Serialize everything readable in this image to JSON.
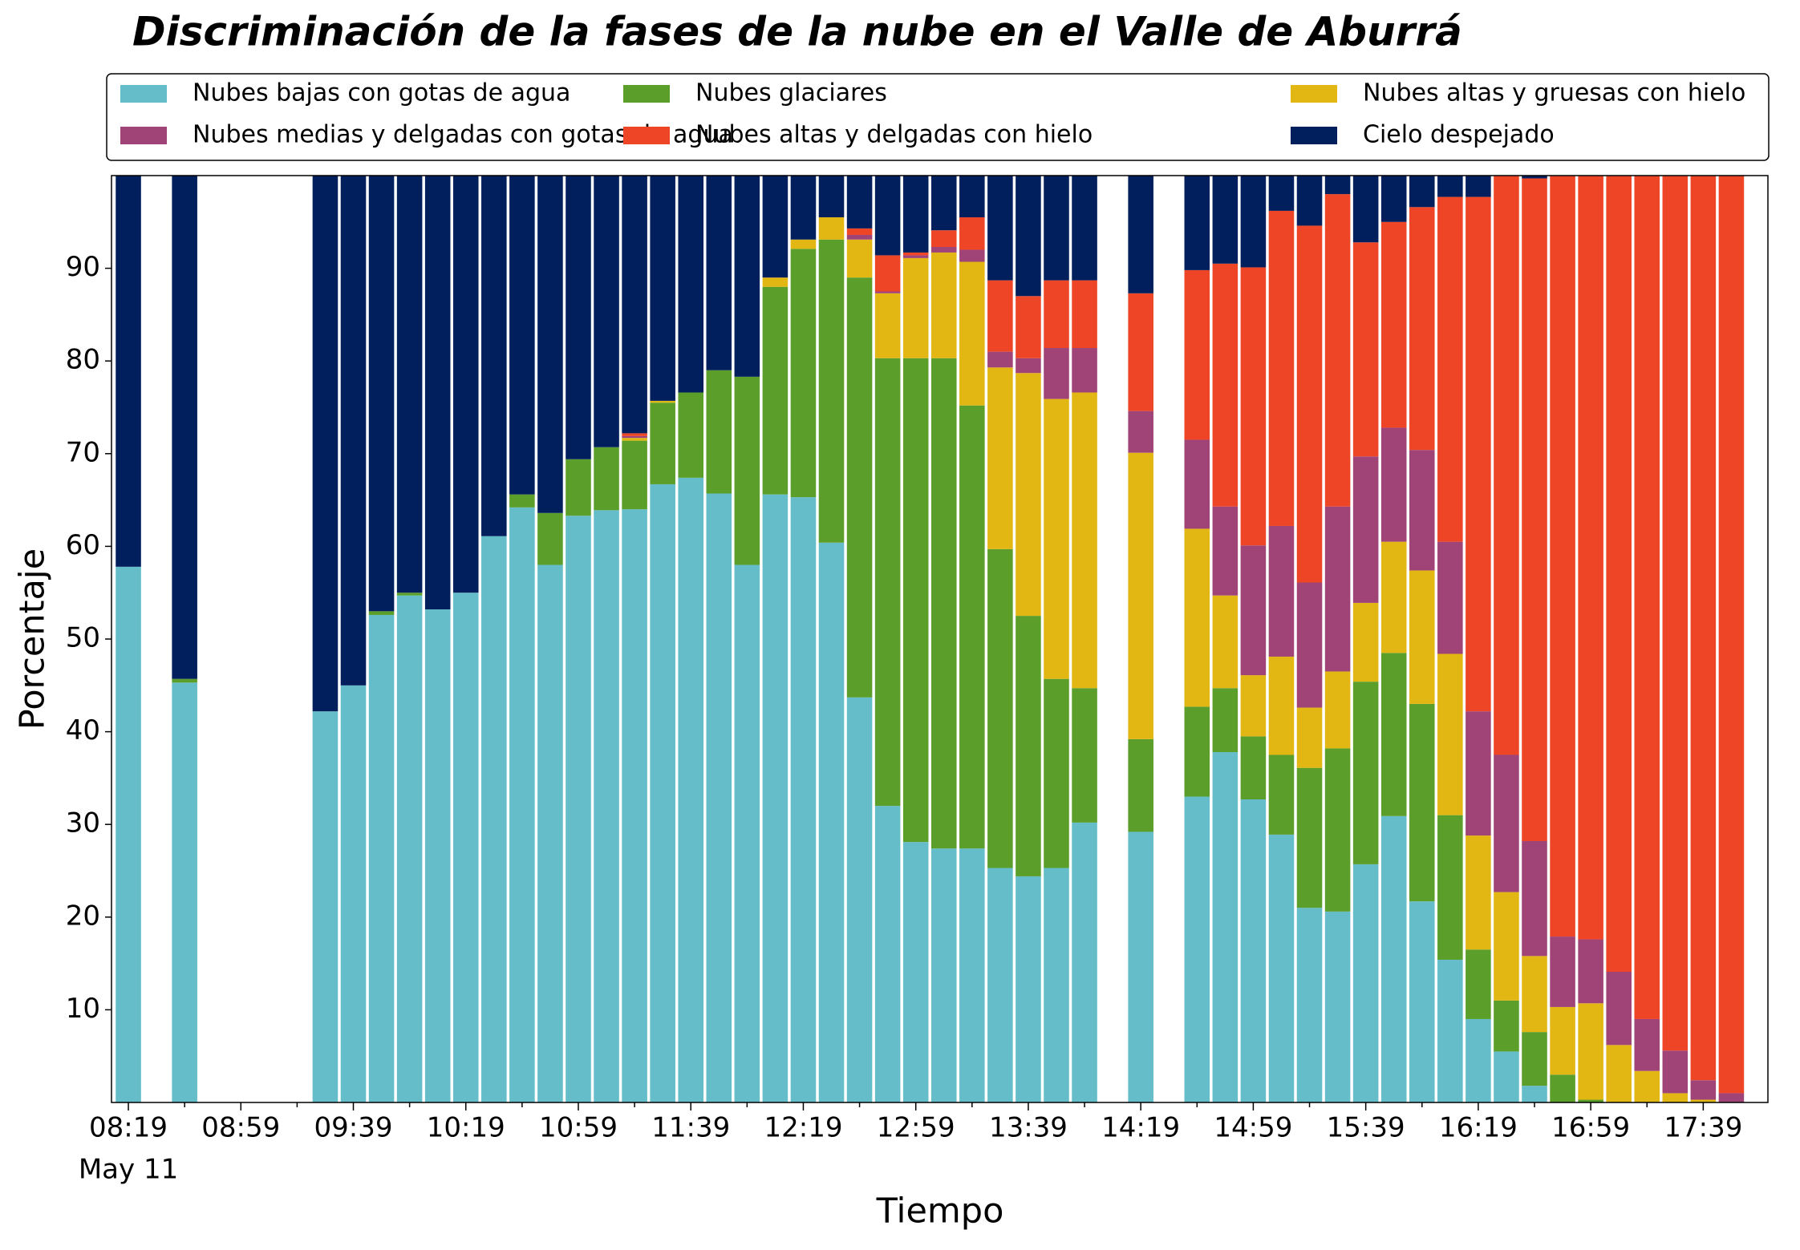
{
  "chart_data": {
    "type": "stacked_bar",
    "title": "Discriminación de la fases de la nube en el Valle de Aburrá",
    "x_label": "Tiempo",
    "x_sublabel": "May 11",
    "y_label": "Porcentaje",
    "categories": [
      "08:19",
      null,
      null,
      null,
      "08:59",
      null,
      null,
      null,
      "09:39",
      null,
      null,
      null,
      "10:19",
      null,
      null,
      null,
      "10:59",
      null,
      null,
      null,
      "11:39",
      null,
      null,
      null,
      "12:19",
      null,
      null,
      null,
      "12:59",
      null,
      null,
      null,
      "13:39",
      null,
      null,
      null,
      "14:19",
      null,
      null,
      null,
      "14:59",
      null,
      null,
      null,
      "15:39",
      null,
      null,
      null,
      "16:19",
      null,
      null,
      null,
      "16:59",
      null,
      null,
      null,
      "17:39",
      null
    ],
    "ylim": [
      0,
      100
    ],
    "yticks": [
      10,
      20,
      30,
      40,
      50,
      60,
      70,
      80,
      90
    ],
    "legend": "top",
    "series": [
      {
        "name": "Nubes bajas con gotas de agua",
        "color": "#64bdc9",
        "values": [
          57.8,
          null,
          45.3,
          null,
          null,
          null,
          null,
          42.2,
          45.0,
          52.6,
          54.7,
          53.2,
          55.0,
          61.1,
          64.2,
          58.0,
          63.3,
          63.9,
          64.0,
          66.7,
          67.4,
          65.7,
          58.0,
          65.6,
          65.3,
          60.4,
          43.7,
          32.0,
          28.1,
          27.4,
          27.4,
          25.3,
          24.4,
          25.3,
          30.2,
          null,
          29.2,
          null,
          33.0,
          37.8,
          32.7,
          28.9,
          21.0,
          20.6,
          25.7,
          30.9,
          21.7,
          15.4,
          9.0,
          5.5,
          1.8,
          0,
          0,
          0,
          0,
          0,
          0,
          0
        ]
      },
      {
        "name": "Nubes glaciares",
        "color": "#5b9e2a",
        "values": [
          0,
          null,
          0.4,
          null,
          null,
          null,
          null,
          0,
          0,
          0.4,
          0.3,
          0,
          0,
          0,
          1.4,
          5.6,
          6.1,
          6.8,
          7.4,
          8.8,
          9.2,
          13.3,
          20.3,
          22.4,
          26.8,
          32.7,
          45.3,
          48.3,
          52.2,
          52.9,
          47.8,
          34.4,
          28.1,
          20.4,
          14.5,
          null,
          10.0,
          null,
          9.7,
          6.9,
          6.8,
          8.6,
          15.1,
          17.6,
          19.7,
          17.6,
          21.3,
          15.6,
          7.5,
          5.5,
          5.8,
          3.0,
          0.3,
          0,
          0,
          0,
          0,
          0
        ]
      },
      {
        "name": "Nubes altas y gruesas con hielo",
        "color": "#e2b714",
        "values": [
          0,
          null,
          0,
          null,
          null,
          null,
          null,
          0,
          0,
          0,
          0,
          0,
          0,
          0,
          0,
          0,
          0,
          0,
          0.3,
          0.2,
          0,
          0,
          0,
          1.0,
          1.0,
          2.4,
          4.1,
          7.0,
          10.8,
          11.4,
          15.5,
          19.6,
          26.2,
          30.2,
          31.9,
          null,
          30.9,
          null,
          19.2,
          10.0,
          6.6,
          10.6,
          6.5,
          8.3,
          8.5,
          12.0,
          14.4,
          17.4,
          12.3,
          11.7,
          8.2,
          7.3,
          10.4,
          6.2,
          3.4,
          1.0,
          0.3,
          0
        ]
      },
      {
        "name": "Nubes medias y delgadas con gotas de agua",
        "color": "#a04478",
        "values": [
          0,
          null,
          0,
          null,
          null,
          null,
          null,
          0,
          0,
          0,
          0,
          0,
          0,
          0,
          0,
          0,
          0,
          0,
          0.2,
          0,
          0,
          0,
          0,
          0,
          0,
          0,
          0.5,
          0.2,
          0.3,
          0.6,
          1.3,
          1.7,
          1.6,
          5.5,
          4.8,
          null,
          4.5,
          null,
          9.6,
          9.6,
          14.0,
          14.1,
          13.5,
          17.8,
          15.8,
          12.3,
          13.0,
          12.1,
          13.4,
          14.8,
          12.4,
          7.6,
          6.9,
          7.9,
          5.6,
          4.6,
          2.1,
          1.0
        ]
      },
      {
        "name": "Nubes altas y delgadas con hielo",
        "color": "#ee4527",
        "values": [
          0,
          null,
          0,
          null,
          null,
          null,
          null,
          0,
          0,
          0,
          0,
          0,
          0,
          0,
          0,
          0,
          0,
          0,
          0.3,
          0,
          0,
          0,
          0,
          0,
          0,
          0,
          0.7,
          3.9,
          0.3,
          1.8,
          3.5,
          7.7,
          6.7,
          7.3,
          7.3,
          null,
          12.7,
          null,
          18.3,
          26.2,
          30.0,
          34.0,
          38.5,
          33.7,
          23.1,
          22.2,
          26.2,
          37.2,
          55.5,
          62.5,
          71.5,
          82.1,
          82.4,
          85.9,
          91.0,
          94.4,
          97.6,
          99.0
        ]
      },
      {
        "name": "Cielo despejado",
        "color": "#001f5c",
        "values": [
          42.2,
          null,
          54.3,
          null,
          null,
          null,
          null,
          57.8,
          55.0,
          47.0,
          45.0,
          46.8,
          45.0,
          38.9,
          34.4,
          36.4,
          30.6,
          29.3,
          27.8,
          24.3,
          23.4,
          21.0,
          21.7,
          11.0,
          6.9,
          4.5,
          5.7,
          8.6,
          8.3,
          5.9,
          4.5,
          11.3,
          13.0,
          11.3,
          11.3,
          null,
          12.7,
          null,
          10.2,
          9.5,
          9.9,
          3.8,
          5.4,
          2.0,
          7.2,
          5.0,
          3.4,
          2.3,
          2.3,
          0,
          0.3,
          0,
          0,
          0,
          0,
          0,
          0,
          0
        ]
      }
    ]
  }
}
